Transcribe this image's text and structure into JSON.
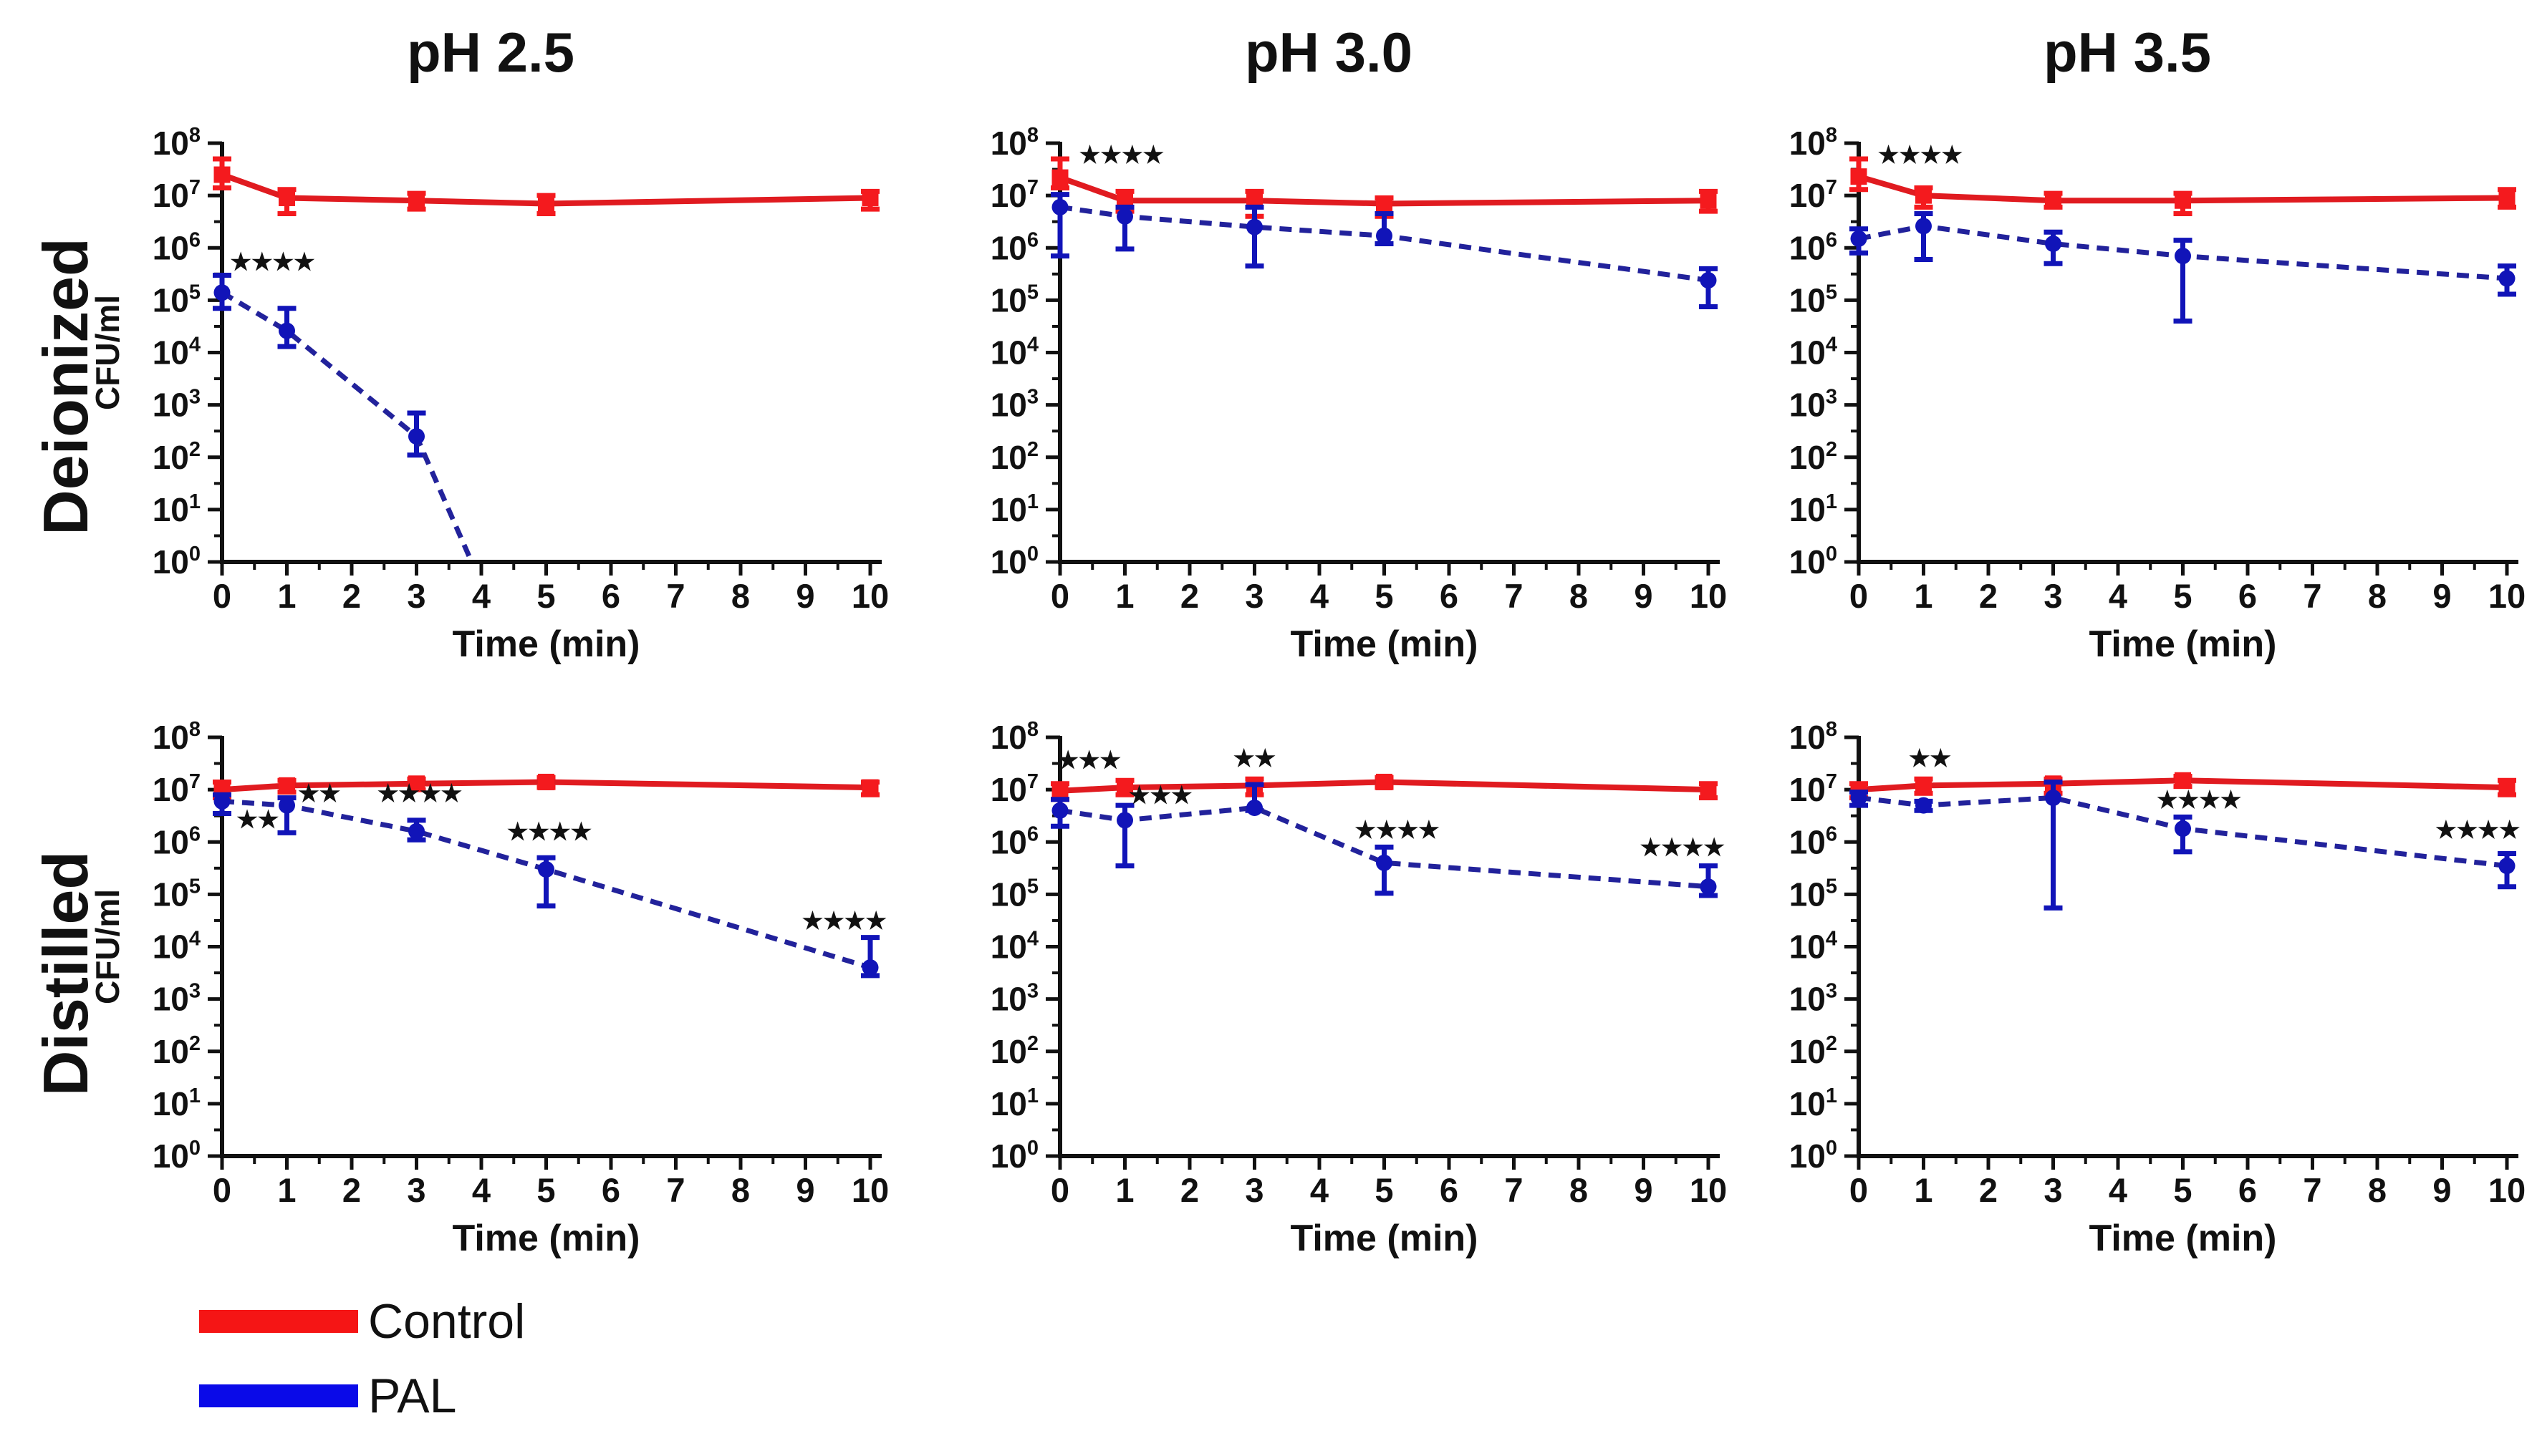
{
  "figure": {
    "rows": [
      {
        "label": "Deionized"
      },
      {
        "label": "Distilled"
      }
    ],
    "columns": [
      {
        "label": "pH 2.5"
      },
      {
        "label": "pH 3.0"
      },
      {
        "label": "pH 3.5"
      }
    ],
    "legend": [
      {
        "label": "Control",
        "color": "#f51515"
      },
      {
        "label": "PAL",
        "color": "#0a0ae8"
      }
    ]
  },
  "chart_data": {
    "type": "line",
    "x_label": "Time (min)",
    "y_label": "CFU/ml",
    "x_axis": {
      "ticks": [
        0,
        1,
        2,
        3,
        4,
        5,
        6,
        7,
        8,
        9,
        10
      ],
      "range": [
        0,
        10
      ],
      "minor_ticks_every": 0.5
    },
    "y_axis": {
      "scale": "log10",
      "base_label": "10",
      "exponents": [
        0,
        1,
        2,
        3,
        4,
        5,
        6,
        7,
        8
      ],
      "range_exponents": [
        0,
        8
      ]
    },
    "series_styles": {
      "control": {
        "name": "Control",
        "line": "solid",
        "marker": "square",
        "line_color": "#e01b20",
        "marker_color": "#f41a1e"
      },
      "pal": {
        "name": "PAL",
        "line": "dashed",
        "marker": "circle",
        "line_color": "#22229b",
        "marker_color": "#1114b8"
      }
    },
    "panels": [
      {
        "id": "deionized-ph-2-5",
        "row": "Deionized",
        "column": "pH 2.5",
        "show_ylabel": true,
        "series": [
          {
            "key": "control",
            "x": [
              0,
              1,
              3,
              5,
              10
            ],
            "y": [
              25000000.0,
              9000000.0,
              8000000.0,
              7000000.0,
              9000000.0
            ],
            "err_lo": [
              14000000.0,
              4500000.0,
              5500000.0,
              4500000.0,
              5500000.0
            ],
            "err_hi": [
              50000000.0,
              13000000.0,
              11000000.0,
              10000000.0,
              12000000.0
            ]
          },
          {
            "key": "pal",
            "x": [
              0,
              1,
              3
            ],
            "y": [
              140000.0,
              26000.0,
              250.0
            ],
            "err_lo": [
              70000.0,
              13000.0,
              110.0
            ],
            "err_hi": [
              300000.0,
              70000.0,
              700.0
            ],
            "line_end": [
              3.85,
              1.0
            ]
          }
        ],
        "significance": [
          {
            "x": 0.78,
            "y": 380000.0,
            "text": "★★★★"
          }
        ]
      },
      {
        "id": "deionized-ph-3-0",
        "row": "Deionized",
        "column": "pH 3.0",
        "show_ylabel": false,
        "series": [
          {
            "key": "control",
            "x": [
              0,
              1,
              3,
              5,
              10
            ],
            "y": [
              22000000.0,
              8000000.0,
              8000000.0,
              7000000.0,
              8000000.0
            ],
            "err_lo": [
              14000000.0,
              5000000.0,
              4000000.0,
              4000000.0,
              5000000.0
            ],
            "err_hi": [
              50000000.0,
              12000000.0,
              12000000.0,
              9000000.0,
              12000000.0
            ]
          },
          {
            "key": "pal",
            "x": [
              0,
              1,
              3,
              5,
              10
            ],
            "y": [
              6000000.0,
              4000000.0,
              2500000.0,
              1700000.0,
              240000.0
            ],
            "err_lo": [
              700000.0,
              950000.0,
              450000.0,
              1200000.0,
              75000.0
            ],
            "err_hi": [
              10500000.0,
              6000000.0,
              6000000.0,
              4500000.0,
              400000.0
            ]
          }
        ],
        "significance": [
          {
            "x": 0.95,
            "y": 42000000.0,
            "text": "★★★★"
          }
        ]
      },
      {
        "id": "deionized-ph-3-5",
        "row": "Deionized",
        "column": "pH 3.5",
        "show_ylabel": false,
        "series": [
          {
            "key": "control",
            "x": [
              0,
              1,
              3,
              5,
              10
            ],
            "y": [
              23000000.0,
              10000000.0,
              8000000.0,
              8000000.0,
              9000000.0
            ],
            "err_lo": [
              13000000.0,
              6000000.0,
              6000000.0,
              4500000.0,
              6000000.0
            ],
            "err_hi": [
              50000000.0,
              14000000.0,
              11000000.0,
              11000000.0,
              13000000.0
            ]
          },
          {
            "key": "pal",
            "x": [
              0,
              1,
              3,
              5,
              10
            ],
            "y": [
              1500000.0,
              2600000.0,
              1200000.0,
              700000.0,
              260000.0
            ],
            "err_lo": [
              800000.0,
              600000.0,
              500000.0,
              40000.0,
              130000.0
            ],
            "err_hi": [
              2300000.0,
              4500000.0,
              2000000.0,
              1400000.0,
              450000.0
            ]
          }
        ],
        "significance": [
          {
            "x": 0.95,
            "y": 42000000.0,
            "text": "★★★★"
          }
        ]
      },
      {
        "id": "distilled-ph-2-5",
        "row": "Distilled",
        "column": "pH 2.5",
        "show_ylabel": true,
        "series": [
          {
            "key": "control",
            "x": [
              0,
              1,
              3,
              5,
              10
            ],
            "y": [
              10000000.0,
              12000000.0,
              13000000.0,
              14000000.0,
              11000000.0
            ],
            "err_lo": [
              7000000.0,
              9000000.0,
              10000000.0,
              11000000.0,
              8000000.0
            ],
            "err_hi": [
              14000000.0,
              15000000.0,
              16000000.0,
              17000000.0,
              14000000.0
            ]
          },
          {
            "key": "pal",
            "x": [
              0,
              1,
              3,
              5,
              10
            ],
            "y": [
              6000000.0,
              5000000.0,
              1600000.0,
              300000.0,
              4000.0
            ],
            "err_lo": [
              3500000.0,
              1500000.0,
              1100000.0,
              60000.0,
              2800.0
            ],
            "err_hi": [
              8000000.0,
              7000000.0,
              2600000.0,
              500000.0,
              15000.0
            ]
          }
        ],
        "significance": [
          {
            "x": 0.55,
            "y": 1900000.0,
            "text": "★★"
          },
          {
            "x": 1.5,
            "y": 6000000.0,
            "text": "★★"
          },
          {
            "x": 3.05,
            "y": 6000000.0,
            "text": "★★★★"
          },
          {
            "x": 5.05,
            "y": 1100000.0,
            "text": "★★★★"
          },
          {
            "x": 9.6,
            "y": 22000.0,
            "text": "★★★★"
          }
        ]
      },
      {
        "id": "distilled-ph-3-0",
        "row": "Distilled",
        "column": "pH 3.0",
        "show_ylabel": false,
        "series": [
          {
            "key": "control",
            "x": [
              0,
              1,
              3,
              5,
              10
            ],
            "y": [
              9500000.0,
              11000000.0,
              12000000.0,
              14000000.0,
              10000000.0
            ],
            "err_lo": [
              6500000.0,
              8000000.0,
              8000000.0,
              11000000.0,
              7000000.0
            ],
            "err_hi": [
              13000000.0,
              15000000.0,
              16000000.0,
              17000000.0,
              13000000.0
            ]
          },
          {
            "key": "pal",
            "x": [
              0,
              1,
              3,
              5,
              10
            ],
            "y": [
              4000000.0,
              2600000.0,
              4500000.0,
              400000.0,
              140000.0
            ],
            "err_lo": [
              2000000.0,
              350000.0,
              4000000.0,
              105000.0,
              95000.0
            ],
            "err_hi": [
              6500000.0,
              5000000.0,
              12500000.0,
              800000.0,
              350000.0
            ]
          }
        ],
        "significance": [
          {
            "x": 0.45,
            "y": 26000000.0,
            "text": "★★★"
          },
          {
            "x": 1.55,
            "y": 5500000.0,
            "text": "★★★"
          },
          {
            "x": 3.0,
            "y": 28000000.0,
            "text": "★★"
          },
          {
            "x": 5.2,
            "y": 1200000.0,
            "text": "★★★★"
          },
          {
            "x": 9.6,
            "y": 550000.0,
            "text": "★★★★"
          }
        ]
      },
      {
        "id": "distilled-ph-3-5",
        "row": "Distilled",
        "column": "pH 3.5",
        "show_ylabel": false,
        "series": [
          {
            "key": "control",
            "x": [
              0,
              1,
              3,
              5,
              10
            ],
            "y": [
              10000000.0,
              12000000.0,
              13000000.0,
              15000000.0,
              11000000.0
            ],
            "err_lo": [
              7000000.0,
              8500000.0,
              8500000.0,
              11500000.0,
              8000000.0
            ],
            "err_hi": [
              13000000.0,
              16000000.0,
              16000000.0,
              18000000.0,
              15000000.0
            ]
          },
          {
            "key": "pal",
            "x": [
              0,
              1,
              3,
              5,
              10
            ],
            "y": [
              7000000.0,
              5000000.0,
              7000000.0,
              1800000.0,
              350000.0
            ],
            "err_lo": [
              5000000.0,
              4000000.0,
              55000.0,
              650000.0,
              140000.0
            ],
            "err_hi": [
              9000000.0,
              6000000.0,
              14000000.0,
              3000000.0,
              600000.0
            ]
          }
        ],
        "significance": [
          {
            "x": 1.1,
            "y": 28000000.0,
            "text": "★★"
          },
          {
            "x": 5.25,
            "y": 4500000.0,
            "text": "★★★★"
          },
          {
            "x": 9.55,
            "y": 1200000.0,
            "text": "★★★★"
          }
        ]
      }
    ]
  }
}
